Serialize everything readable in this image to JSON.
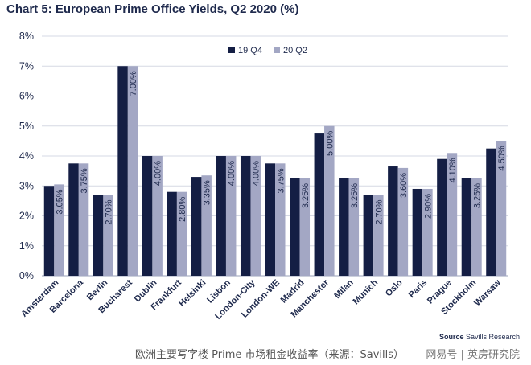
{
  "chart_data": {
    "type": "bar",
    "title": "Chart 5: European Prime Office Yields, Q2 2020 (%)",
    "categories": [
      "Amsterdam",
      "Barcelona",
      "Berlin",
      "Bucharest",
      "Dublin",
      "Frankfurt",
      "Helsinki",
      "Lisbon",
      "London-City",
      "London-WE",
      "Madrid",
      "Manchester",
      "Milan",
      "Munich",
      "Oslo",
      "Paris",
      "Prague",
      "Stockholm",
      "Warsaw"
    ],
    "series": [
      {
        "name": "19 Q4",
        "color": "#141e44",
        "values": [
          3.0,
          3.75,
          2.7,
          7.0,
          4.0,
          2.8,
          3.3,
          4.0,
          4.0,
          3.75,
          3.25,
          4.75,
          3.25,
          2.7,
          3.65,
          2.9,
          3.9,
          3.25,
          4.25
        ]
      },
      {
        "name": "20 Q2",
        "color": "#a3a7c4",
        "values": [
          3.05,
          3.75,
          2.7,
          7.0,
          4.0,
          2.8,
          3.35,
          4.0,
          4.0,
          3.75,
          3.25,
          5.0,
          3.25,
          2.7,
          3.6,
          2.9,
          4.1,
          3.25,
          4.5
        ]
      }
    ],
    "data_labels": [
      "3.05%",
      "3.75%",
      "2.70%",
      "7.00%",
      "4.00%",
      "2.80%",
      "3.35%",
      "4.00%",
      "4.00%",
      "3.75%",
      "3.25%",
      "5.00%",
      "3.25%",
      "2.70%",
      "3.60%",
      "2.90%",
      "4.10%",
      "3.25%",
      "4.50%"
    ],
    "y_ticks": [
      "0%",
      "1%",
      "2%",
      "3%",
      "4%",
      "5%",
      "6%",
      "7%",
      "8%"
    ],
    "ylim": [
      0,
      8
    ],
    "grid": true,
    "legend_position": "top-right",
    "xlabel": "",
    "ylabel": ""
  },
  "source": {
    "label": "Source",
    "text": "Savills Research"
  },
  "caption": "欧洲主要写字楼 Prime 市场租金收益率（来源：Savills）",
  "watermark": "网易号 | 英房研究院"
}
